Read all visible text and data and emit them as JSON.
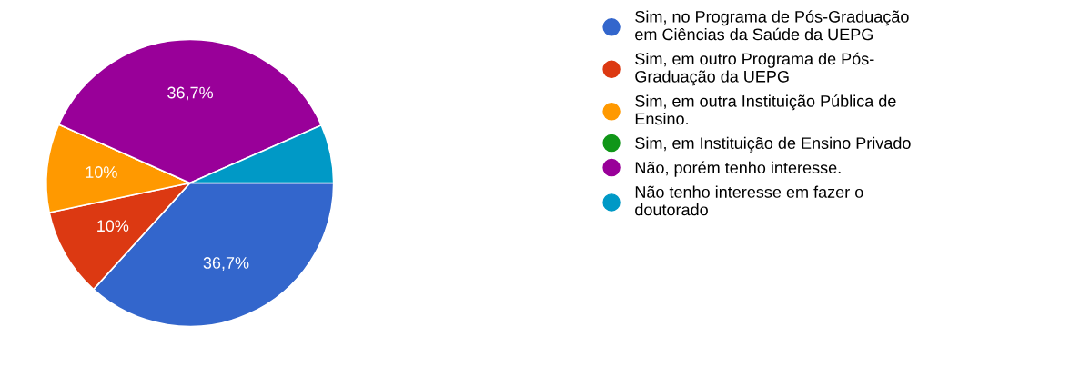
{
  "chart_data": {
    "type": "pie",
    "categories": [
      "Sim, no Programa de Pós-Graduação\nem Ciências da Saúde da UEPG",
      "Sim, em outro Programa de Pós-\nGraduação da UEPG",
      "Sim, em outra Instituição Pública de\nEnsino.",
      "Sim, em Instituição de Ensino Privado",
      "Não, porém tenho interesse.",
      "Não tenho interesse em fazer o\ndoutorado"
    ],
    "values": [
      36.7,
      10,
      10,
      0,
      36.7,
      6.6
    ],
    "colors": [
      "#3366cc",
      "#dc3912",
      "#ff9900",
      "#109618",
      "#990099",
      "#0099c6"
    ],
    "value_labels": [
      "36,7%",
      "10%",
      "10%",
      null,
      "36,7%",
      null
    ],
    "legend": "right"
  }
}
